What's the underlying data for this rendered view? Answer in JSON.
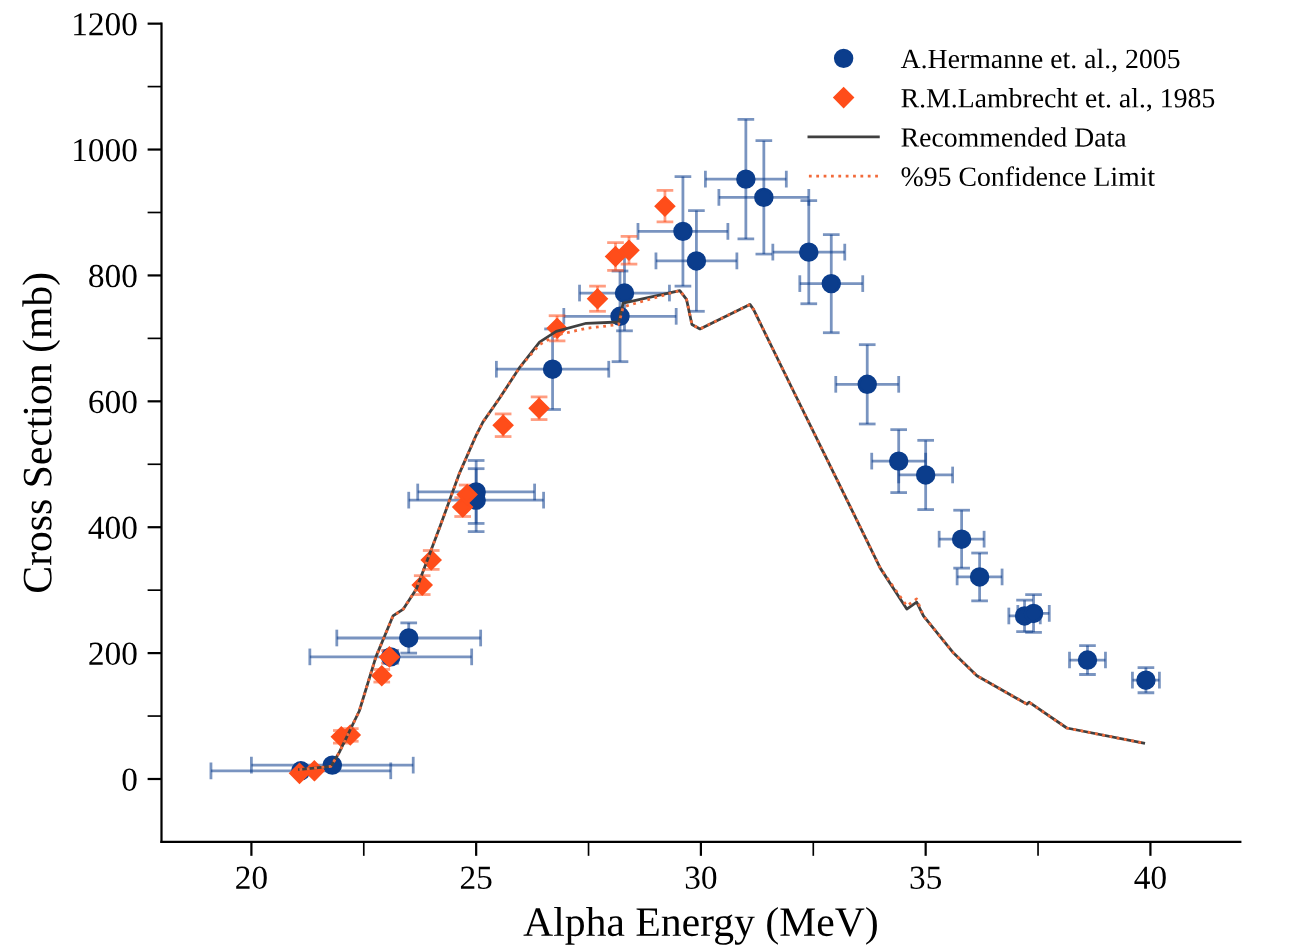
{
  "chart_data": {
    "type": "scatter",
    "xlabel": "Alpha Energy (MeV)",
    "ylabel": "Cross Section (mb)",
    "xlim": [
      18,
      42
    ],
    "ylim": [
      -100,
      1200
    ],
    "xticks": [
      20,
      {
        "value": 22.5,
        "label": null
      },
      25,
      {
        "value": 27.5,
        "label": null
      },
      30,
      {
        "value": 32.5,
        "label": null
      },
      35,
      {
        "value": 37.5,
        "label": null
      },
      40
    ],
    "yticks": [
      0,
      {
        "value": 100,
        "label": null
      },
      200,
      {
        "value": 300,
        "label": null
      },
      400,
      {
        "value": 500,
        "label": null
      },
      600,
      {
        "value": 700,
        "label": null
      },
      800,
      {
        "value": 900,
        "label": null
      },
      1000,
      {
        "value": 1100,
        "label": null
      },
      1200
    ],
    "grid": false,
    "legend": "top right",
    "series": [
      {
        "name": "A.Hermanne et. al., 2005",
        "marker": "circle",
        "color": "#0b3d8c",
        "x": [
          21.1,
          21.8,
          23.1,
          23.5,
          25.0,
          25.0,
          26.7,
          28.2,
          28.3,
          29.6,
          29.9,
          31.0,
          31.4,
          32.4,
          32.9,
          33.7,
          34.4,
          35.0,
          35.8,
          36.2,
          37.2,
          37.4,
          38.6,
          39.9
        ],
        "values": [
          13,
          22,
          194,
          224,
          456,
          443,
          651,
          735,
          772,
          870,
          823,
          953,
          924,
          837,
          787,
          627,
          505,
          483,
          381,
          321,
          259,
          263,
          189,
          157
        ],
        "errors": [
          null,
          null,
          10,
          24,
          50,
          50,
          64,
          72,
          60,
          87,
          80,
          95,
          90,
          82,
          78,
          63,
          50,
          55,
          46,
          38,
          25,
          30,
          23,
          20
        ],
        "xerrors": [
          2.0,
          1.8,
          1.8,
          1.6,
          1.3,
          1.5,
          1.25,
          1.25,
          1.0,
          1.0,
          0.9,
          0.9,
          1.0,
          0.8,
          0.7,
          0.7,
          0.6,
          0.6,
          0.5,
          0.5,
          0.35,
          0.35,
          0.4,
          0.3
        ]
      },
      {
        "name": "R.M.Lambrecht et. al., 1985",
        "marker": "diamond",
        "color": "#ff4d1a",
        "x": [
          21.07,
          21.4,
          22.0,
          22.2,
          22.9,
          23.07,
          23.8,
          24.0,
          24.7,
          24.8,
          25.6,
          26.4,
          26.8,
          27.7,
          28.1,
          28.4,
          29.2
        ],
        "values": [
          9,
          13,
          67,
          70,
          164,
          194,
          308,
          348,
          432,
          452,
          562,
          589,
          716,
          763,
          830,
          840,
          910
        ],
        "errors": [
          null,
          null,
          10,
          10,
          10,
          10,
          15,
          15,
          15,
          15,
          18,
          18,
          20,
          20,
          22,
          22,
          25
        ]
      },
      {
        "name": "Recommended Data",
        "type": "line",
        "line_style": "solid",
        "color": "#404040",
        "x": [
          21.07,
          21.77,
          21.96,
          22.4,
          22.77,
          23.15,
          23.38,
          23.67,
          24.19,
          24.63,
          25.0,
          25.15,
          25.52,
          25.97,
          26.41,
          26.78,
          27.45,
          28.17,
          28.27,
          29.53,
          29.68,
          29.8,
          29.98,
          31.09,
          31.17,
          32.06,
          33.1,
          33.99,
          34.58,
          34.8,
          34.95,
          35.62,
          36.14,
          37.25,
          37.3,
          38.14,
          39.85
        ],
        "values": [
          15,
          20,
          43,
          108,
          194,
          259,
          270,
          302,
          400,
          486,
          546,
          567,
          605,
          654,
          694,
          711,
          724,
          726,
          756,
          776,
          762,
          722,
          715,
          754,
          746,
          616,
          465,
          335,
          270,
          281,
          259,
          200,
          164,
          119,
          122,
          81,
          57
        ]
      },
      {
        "name": "%95 Confidence Limit",
        "type": "line",
        "line_style": "dotted",
        "color": "#f26a3a",
        "x": [
          21.07,
          21.77,
          21.96,
          22.4,
          22.77,
          23.15,
          23.38,
          23.67,
          24.19,
          24.63,
          25.0,
          25.15,
          25.52,
          25.97,
          26.41,
          26.78,
          27.45,
          28.17,
          28.27,
          29.53,
          29.68,
          29.8,
          29.98,
          31.09,
          31.17,
          32.06,
          33.1,
          33.99,
          34.58,
          34.8,
          34.95,
          35.62,
          36.14,
          37.25,
          37.3,
          38.14,
          39.85
        ],
        "values": [
          15,
          20,
          43,
          108,
          194,
          259,
          270,
          302,
          400,
          486,
          546,
          567,
          605,
          654,
          690,
          705,
          716,
          722,
          750,
          776,
          762,
          722,
          715,
          754,
          746,
          616,
          465,
          335,
          275,
          286,
          259,
          200,
          164,
          119,
          122,
          81,
          57
        ]
      }
    ]
  }
}
